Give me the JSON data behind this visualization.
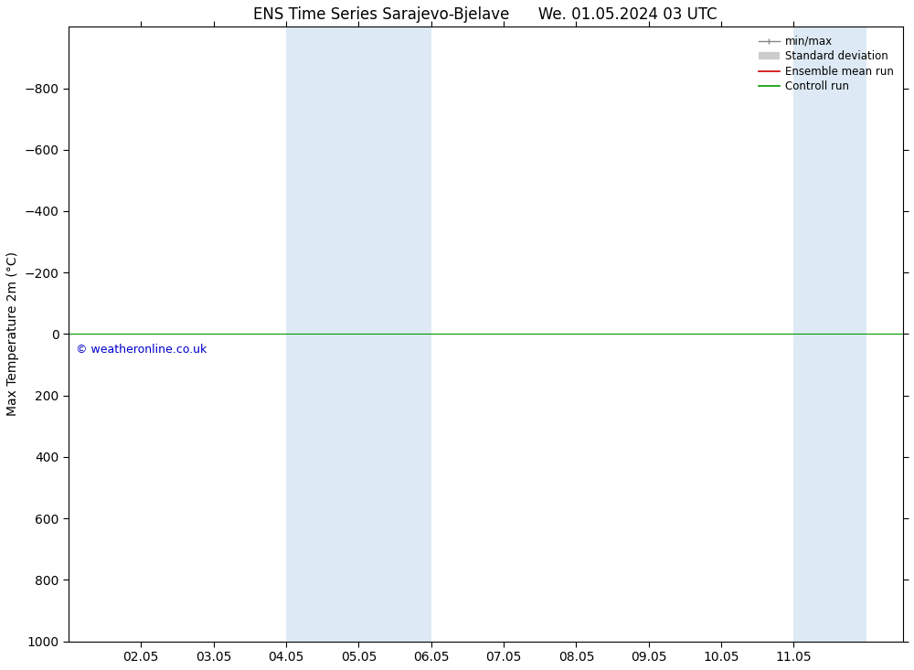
{
  "title": "ENS Time Series Sarajevo-Bjelave      We. 01.05.2024 03 UTC",
  "ylabel": "Max Temperature 2m (°C)",
  "xlabel": "",
  "ylim": [
    -1000,
    1000
  ],
  "yticks": [
    -800,
    -600,
    -400,
    -200,
    0,
    200,
    400,
    600,
    800,
    1000
  ],
  "xtick_labels": [
    "02.05",
    "03.05",
    "04.05",
    "05.05",
    "06.05",
    "07.05",
    "08.05",
    "09.05",
    "10.05",
    "11.05"
  ],
  "xtick_positions": [
    2,
    3,
    4,
    5,
    6,
    7,
    8,
    9,
    10,
    11
  ],
  "xlim": [
    1,
    12.5
  ],
  "shaded_bands": [
    {
      "xmin": 4,
      "xmax": 5,
      "color": "#ddeaf5"
    },
    {
      "xmin": 5,
      "xmax": 6,
      "color": "#ddeaf5"
    },
    {
      "xmin": 11,
      "xmax": 12,
      "color": "#ddeaf5"
    }
  ],
  "hline_y": 0,
  "hline_color": "#009900",
  "legend_labels": [
    "min/max",
    "Standard deviation",
    "Ensemble mean run",
    "Controll run"
  ],
  "legend_colors": [
    "#888888",
    "#cccccc",
    "#cc0000",
    "#009900"
  ],
  "copyright_text": "© weatheronline.co.uk",
  "copyright_color": "#0000cc",
  "background_color": "#ffffff",
  "plot_bg_color": "#ffffff",
  "title_fontsize": 12,
  "axis_fontsize": 10,
  "tick_fontsize": 10
}
